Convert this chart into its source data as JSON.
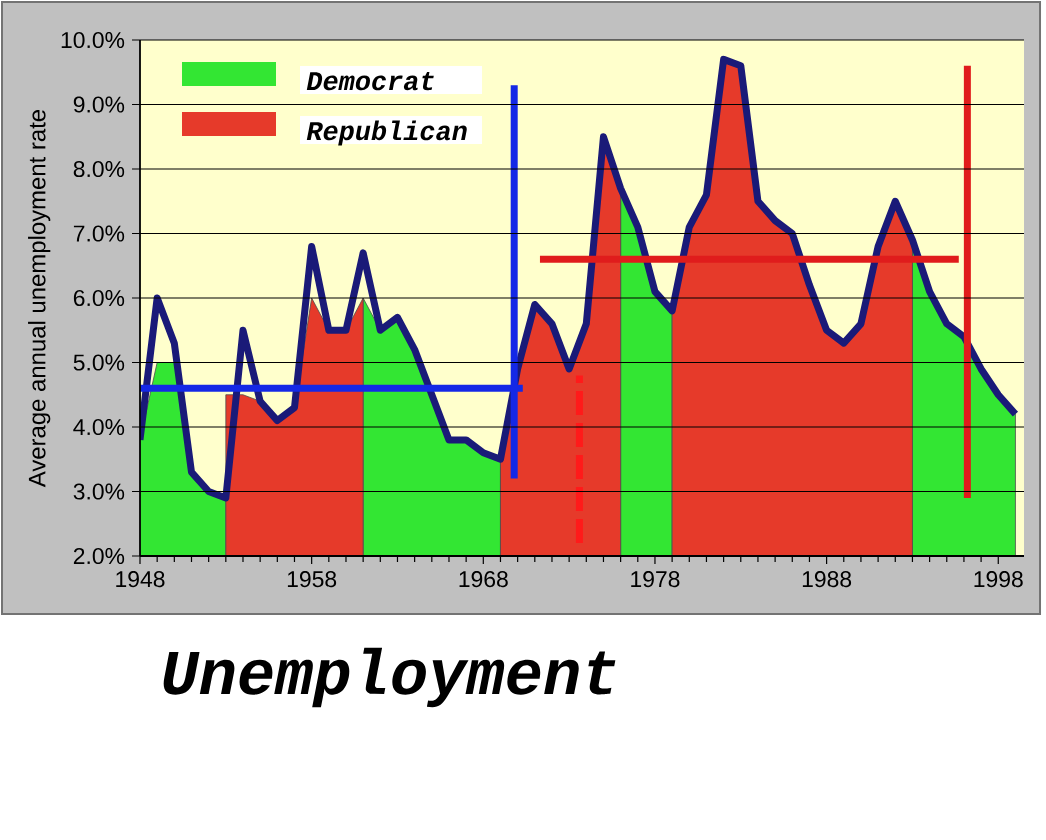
{
  "chart_data": {
    "type": "area",
    "title": "Unemployment",
    "ylabel": "Average annual unemployment rate",
    "x": [
      1948,
      1949,
      1950,
      1951,
      1952,
      1953,
      1954,
      1955,
      1956,
      1957,
      1958,
      1959,
      1960,
      1961,
      1962,
      1963,
      1964,
      1965,
      1966,
      1967,
      1968,
      1969,
      1970,
      1971,
      1972,
      1973,
      1974,
      1975,
      1976,
      1977,
      1978,
      1979,
      1980,
      1981,
      1982,
      1983,
      1984,
      1985,
      1986,
      1987,
      1988,
      1989,
      1990,
      1991,
      1992,
      1993,
      1994,
      1995,
      1996,
      1997,
      1998,
      1999
    ],
    "series": [
      {
        "name": "Democrat",
        "color": "#33e633",
        "values": [
          3.8,
          5.0,
          5.0,
          3.3,
          3.0,
          2.9,
          null,
          null,
          null,
          null,
          null,
          null,
          null,
          6.0,
          5.5,
          5.7,
          5.2,
          4.5,
          3.8,
          3.8,
          3.6,
          3.5,
          null,
          null,
          null,
          null,
          null,
          null,
          7.7,
          7.1,
          6.1,
          5.8,
          null,
          null,
          null,
          null,
          null,
          null,
          null,
          null,
          null,
          null,
          null,
          null,
          null,
          6.9,
          6.1,
          5.6,
          5.4,
          4.9,
          4.5,
          4.2
        ]
      },
      {
        "name": "Republican",
        "color": "#e63a2a",
        "values": [
          null,
          null,
          null,
          null,
          null,
          4.5,
          4.5,
          4.4,
          4.1,
          4.3,
          6.0,
          5.5,
          5.5,
          6.0,
          null,
          null,
          null,
          null,
          null,
          null,
          null,
          3.5,
          4.9,
          5.9,
          5.6,
          4.9,
          5.6,
          8.5,
          7.7,
          null,
          null,
          5.8,
          7.1,
          7.6,
          9.7,
          9.6,
          7.5,
          7.2,
          7.0,
          6.2,
          5.5,
          5.3,
          5.6,
          6.8,
          7.5,
          6.9,
          null,
          null,
          null,
          null,
          null,
          null
        ]
      },
      {
        "type": "line",
        "color": "#1a1a78",
        "values": [
          3.8,
          6.0,
          5.3,
          3.3,
          3.0,
          2.9,
          5.5,
          4.4,
          4.1,
          4.3,
          6.8,
          5.5,
          5.5,
          6.7,
          5.5,
          5.7,
          5.2,
          4.5,
          3.8,
          3.8,
          3.6,
          3.5,
          4.9,
          5.9,
          5.6,
          4.9,
          5.6,
          8.5,
          7.7,
          7.1,
          6.1,
          5.8,
          7.1,
          7.6,
          9.7,
          9.6,
          7.5,
          7.2,
          7.0,
          6.2,
          5.5,
          5.3,
          5.6,
          6.8,
          7.5,
          6.9,
          6.1,
          5.6,
          5.4,
          4.9,
          4.5,
          4.2
        ]
      },
      {
        "type": "line",
        "color": "#1428e6",
        "x": [
          1948,
          1970.3
        ],
        "values": [
          4.6,
          4.6
        ]
      },
      {
        "type": "line",
        "color": "#e01c1c",
        "x": [
          1971.3,
          1995.7
        ],
        "values": [
          6.6,
          6.6
        ]
      },
      {
        "type": "line",
        "color": "#1428e6",
        "x": [
          1969.8,
          1969.8
        ],
        "values": [
          3.2,
          9.3
        ]
      },
      {
        "type": "line",
        "color": "#e01c1c",
        "x": [
          1996.2,
          1996.2
        ],
        "values": [
          2.9,
          9.6
        ]
      },
      {
        "type": "line",
        "color": "#ff1a1a",
        "line_style": "dashed",
        "x": [
          1973.6,
          1973.6
        ],
        "values": [
          2.2,
          4.8
        ]
      }
    ],
    "xlim": [
      1948,
      1999.5
    ],
    "xticks": [
      1948,
      1958,
      1968,
      1978,
      1988,
      1998
    ],
    "ylim": [
      2,
      10
    ],
    "yticks": [
      {
        "value": 2,
        "label": "2.0%"
      },
      {
        "value": 3,
        "label": "3.0%"
      },
      {
        "value": 4,
        "label": "4.0%"
      },
      {
        "value": 5,
        "label": "5.0%"
      },
      {
        "value": 6,
        "label": "6.0%"
      },
      {
        "value": 7,
        "label": "7.0%"
      },
      {
        "value": 8,
        "label": "8.0%"
      },
      {
        "value": 9,
        "label": "9.0%"
      },
      {
        "value": 10,
        "label": "10.0%"
      }
    ],
    "grid": "y",
    "legend": "top left"
  }
}
